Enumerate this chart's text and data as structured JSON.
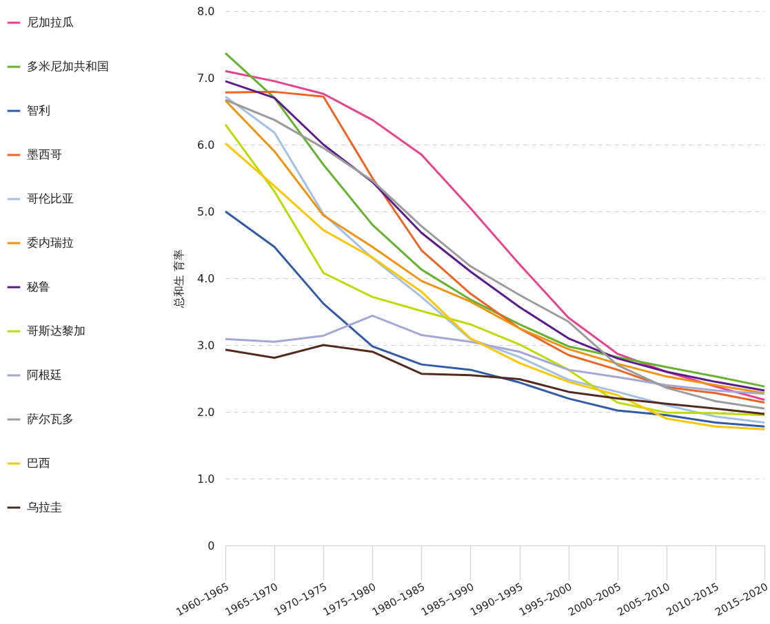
{
  "chart_data": {
    "type": "line",
    "ylabel": "总和生 育率",
    "categories": [
      "1960–1965",
      "1965–1970",
      "1970–1975",
      "1975–1980",
      "1980–1985",
      "1985–1990",
      "1990–1995",
      "1995–2000",
      "2000–2005",
      "2005–2010",
      "2010–2015",
      "2015–2020"
    ],
    "series": [
      {
        "name": "尼加拉瓜",
        "color": "#e8418f",
        "values": [
          7.1,
          6.95,
          6.76,
          6.37,
          5.85,
          5.05,
          4.21,
          3.41,
          2.87,
          2.6,
          2.38,
          2.18
        ]
      },
      {
        "name": "多米尼加共和国",
        "color": "#64b22f",
        "values": [
          7.37,
          6.7,
          5.7,
          4.8,
          4.13,
          3.68,
          3.31,
          2.98,
          2.82,
          2.67,
          2.53,
          2.38
        ]
      },
      {
        "name": "智利",
        "color": "#2f5aa8",
        "values": [
          5.0,
          4.47,
          3.62,
          2.98,
          2.71,
          2.63,
          2.44,
          2.2,
          2.02,
          1.95,
          1.84,
          1.78
        ]
      },
      {
        "name": "墨西哥",
        "color": "#ec6423",
        "values": [
          6.78,
          6.79,
          6.72,
          5.5,
          4.42,
          3.77,
          3.25,
          2.85,
          2.63,
          2.37,
          2.28,
          2.14
        ]
      },
      {
        "name": "哥伦比亚",
        "color": "#a2c0e6",
        "values": [
          6.72,
          6.18,
          4.96,
          4.3,
          3.72,
          3.09,
          2.82,
          2.48,
          2.3,
          2.1,
          1.93,
          1.84
        ]
      },
      {
        "name": "委内瑞拉",
        "color": "#f1920c",
        "values": [
          6.66,
          5.9,
          4.94,
          4.47,
          3.96,
          3.65,
          3.25,
          2.94,
          2.72,
          2.53,
          2.4,
          2.28
        ]
      },
      {
        "name": "秘鲁",
        "color": "#5d1a8a",
        "values": [
          6.95,
          6.7,
          6.0,
          5.44,
          4.68,
          4.1,
          3.57,
          3.1,
          2.8,
          2.6,
          2.45,
          2.32
        ]
      },
      {
        "name": "哥斯达黎加",
        "color": "#bddb00",
        "values": [
          6.3,
          5.3,
          4.08,
          3.72,
          3.51,
          3.31,
          3.01,
          2.63,
          2.14,
          1.99,
          1.98,
          1.95
        ]
      },
      {
        "name": "阿根廷",
        "color": "#a2a7d6",
        "values": [
          3.09,
          3.05,
          3.14,
          3.44,
          3.15,
          3.05,
          2.9,
          2.63,
          2.52,
          2.4,
          2.32,
          2.27
        ]
      },
      {
        "name": "萨尔瓦多",
        "color": "#9b9b9b",
        "values": [
          6.67,
          6.37,
          5.95,
          5.46,
          4.78,
          4.18,
          3.75,
          3.35,
          2.7,
          2.36,
          2.16,
          2.05
        ]
      },
      {
        "name": "巴西",
        "color": "#fcc700",
        "values": [
          6.02,
          5.38,
          4.72,
          4.31,
          3.8,
          3.1,
          2.73,
          2.45,
          2.25,
          1.9,
          1.78,
          1.74
        ]
      },
      {
        "name": "乌拉圭",
        "color": "#52291d",
        "values": [
          2.93,
          2.81,
          3.0,
          2.9,
          2.57,
          2.55,
          2.49,
          2.3,
          2.2,
          2.12,
          2.05,
          1.97
        ]
      }
    ],
    "ylim": [
      0,
      8
    ],
    "yticks": [
      0,
      {
        "value": 1,
        "label": "1.0"
      },
      {
        "value": 2,
        "label": "2.0"
      },
      {
        "value": 3,
        "label": "3.0"
      },
      {
        "value": 4,
        "label": "4.0"
      },
      {
        "value": 5,
        "label": "5.0"
      },
      {
        "value": 6,
        "label": "6.0"
      },
      {
        "value": 7,
        "label": "7.0"
      },
      {
        "value": 8,
        "label": "8.0"
      }
    ],
    "grid": "y",
    "legend": "left",
    "line_style": "solid"
  }
}
